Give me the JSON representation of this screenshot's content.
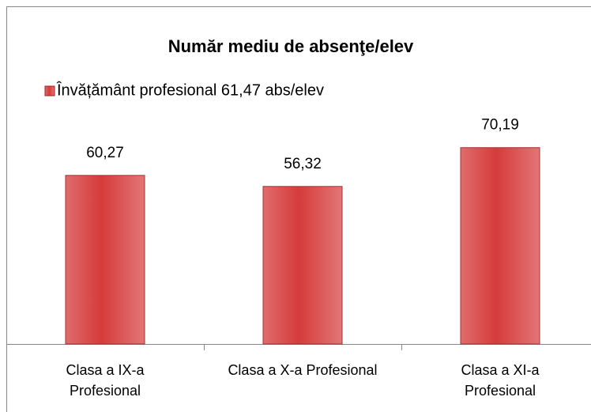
{
  "chart_data": {
    "type": "bar",
    "title": "Număr mediu de absenţe/elev",
    "categories": [
      "Clasa a IX-a Profesional",
      "Clasa a X-a Profesional",
      "Clasa a XI-a Profesional"
    ],
    "series": [
      {
        "name": "Învățământ profesional 61,47 abs/elev",
        "color": "#d63b3b",
        "values": [
          60.27,
          56.32,
          70.19
        ],
        "value_labels": [
          "60,27",
          "56,32",
          "70,19"
        ]
      }
    ],
    "ylim": [
      0,
      80
    ],
    "legend": "top-left"
  }
}
